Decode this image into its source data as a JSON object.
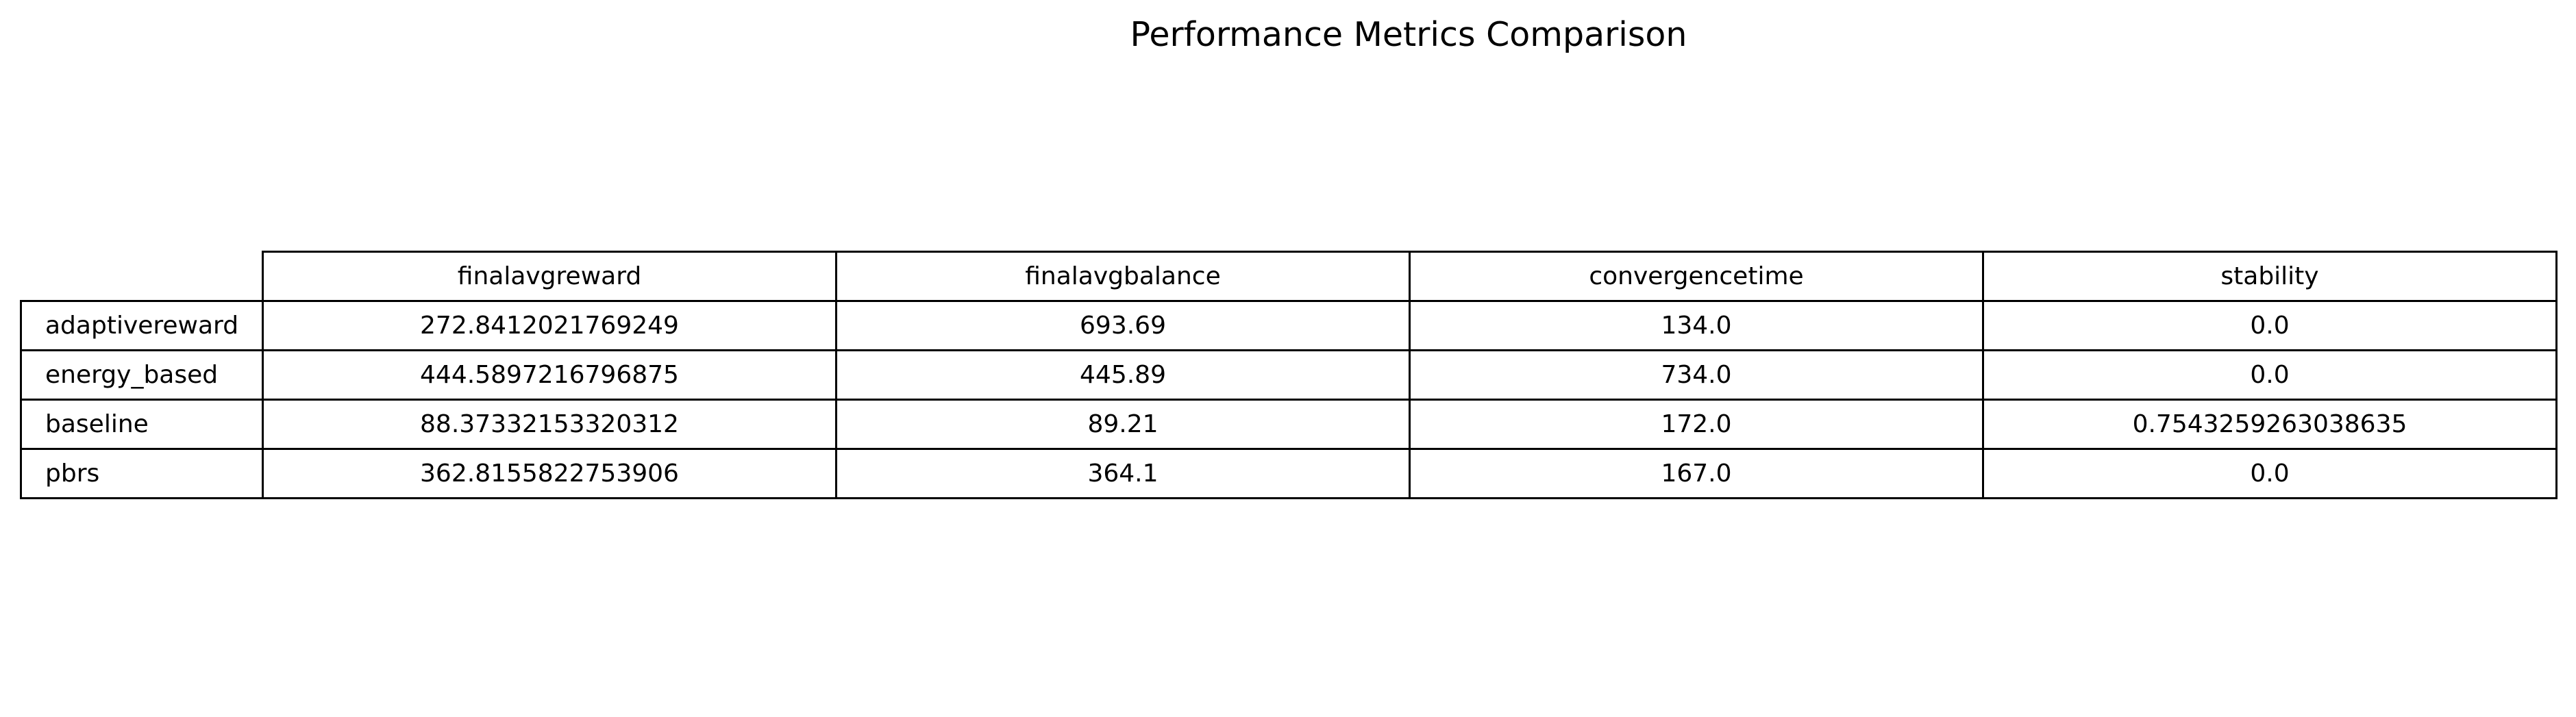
{
  "chart_data": {
    "type": "table",
    "title": "Performance Metrics Comparison",
    "columns": [
      "finalavgreward",
      "finalavgbalance",
      "convergencetime",
      "stability"
    ],
    "rows": [
      {
        "label": "adaptivereward",
        "values": [
          "272.8412021769249",
          "693.69",
          "134.0",
          "0.0"
        ]
      },
      {
        "label": "energy_based",
        "values": [
          "444.5897216796875",
          "445.89",
          "734.0",
          "0.0"
        ]
      },
      {
        "label": "baseline",
        "values": [
          "88.37332153320312",
          "89.21",
          "172.0",
          "0.7543259263038635"
        ]
      },
      {
        "label": "pbrs",
        "values": [
          "362.8155822753906",
          "364.1",
          "167.0",
          "0.0"
        ]
      }
    ]
  }
}
